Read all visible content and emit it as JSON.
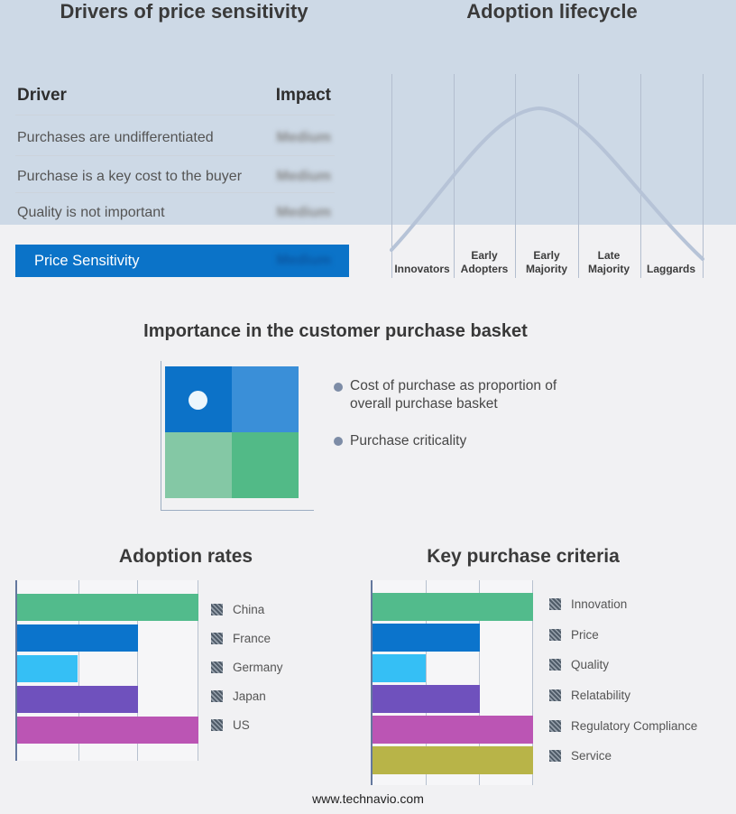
{
  "page": {
    "background": "#f1f1f3",
    "band_background": "#cdd9e6",
    "footer": "www.technavio.com"
  },
  "drivers_table": {
    "title": "Drivers of price sensitivity",
    "columns": {
      "driver": "Driver",
      "impact": "Impact"
    },
    "rows": [
      {
        "driver": "Purchases are undifferentiated",
        "impact": "Medium",
        "impact_blurred": true
      },
      {
        "driver": "Purchase is a key cost to the buyer",
        "impact": "Medium",
        "impact_blurred": true
      },
      {
        "driver": "Quality is not important",
        "impact": "Medium",
        "impact_blurred": true
      }
    ],
    "highlight": {
      "driver": "Price Sensitivity",
      "impact": "Medium",
      "impact_blurred": true,
      "color": "#0b73c8"
    }
  },
  "basket_section": {
    "title": "Importance in the customer purchase basket",
    "bullets": [
      "Cost of purchase as proportion of overall purchase basket",
      "Purchase criticality"
    ],
    "matrix_colors": {
      "top_left": "#0c72c8",
      "top_right": "#3a8fd8",
      "bottom_left": "#84c8a5",
      "bottom_right": "#52ba87"
    },
    "marker_quadrant": "top-left"
  },
  "chart_data": [
    {
      "id": "adoption_lifecycle",
      "type": "line",
      "title": "Adoption lifecycle",
      "categories": [
        "Innovators",
        "Early Adopters",
        "Early Majority",
        "Late Majority",
        "Laggards"
      ],
      "shape": "bell curve rising from Innovators, peaking at Early Majority, falling to Laggards",
      "curve_color": "#b6c3d7",
      "grid": "vertical segment dividers only, no y axis ticks"
    },
    {
      "id": "adoption_rates",
      "type": "bar",
      "orientation": "horizontal",
      "title": "Adoption rates",
      "categories": [
        "China",
        "France",
        "Germany",
        "Japan",
        "US"
      ],
      "values": [
        3,
        2,
        1,
        2,
        3
      ],
      "xlim": [
        0,
        3
      ],
      "colors": [
        "#52bb8c",
        "#0b74cc",
        "#35bff5",
        "#6f51bd",
        "#bb55b4"
      ],
      "legend_position": "right",
      "grid": "vertical gridlines, unlabeled"
    },
    {
      "id": "key_purchase_criteria",
      "type": "bar",
      "orientation": "horizontal",
      "title": "Key purchase criteria",
      "categories": [
        "Innovation",
        "Price",
        "Quality",
        "Relatability",
        "Regulatory Compliance",
        "Service"
      ],
      "values": [
        3,
        2,
        1,
        2,
        3,
        3
      ],
      "xlim": [
        0,
        3
      ],
      "colors": [
        "#52bb8c",
        "#0b74cc",
        "#35bff5",
        "#6f51bd",
        "#bb55b4",
        "#b8b448"
      ],
      "legend_position": "right",
      "grid": "vertical gridlines, unlabeled"
    }
  ]
}
